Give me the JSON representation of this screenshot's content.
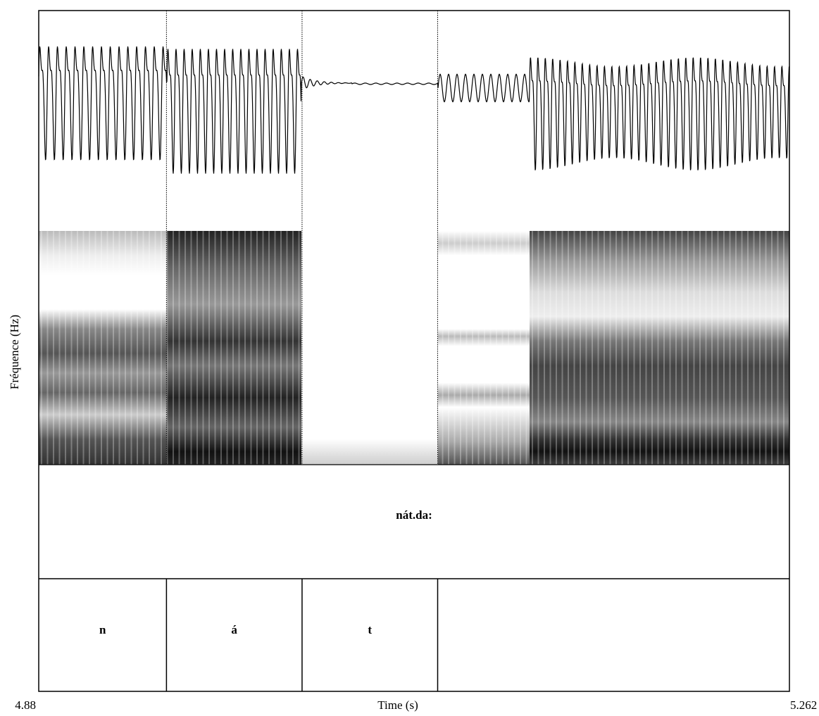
{
  "chart_data": {
    "type": "textgrid",
    "ylabel": "Fréquence (Hz)",
    "xlabel": "Time (s)",
    "xlim": [
      4.88,
      5.262
    ],
    "xticks": [
      4.88,
      5.262
    ],
    "tiers": [
      {
        "boundaries": [],
        "labels": [
          "nát.da:"
        ]
      },
      {
        "boundaries": [
          4.945,
          5.014,
          5.083
        ],
        "labels": [
          "n",
          "á",
          "t",
          null
        ]
      }
    ]
  }
}
